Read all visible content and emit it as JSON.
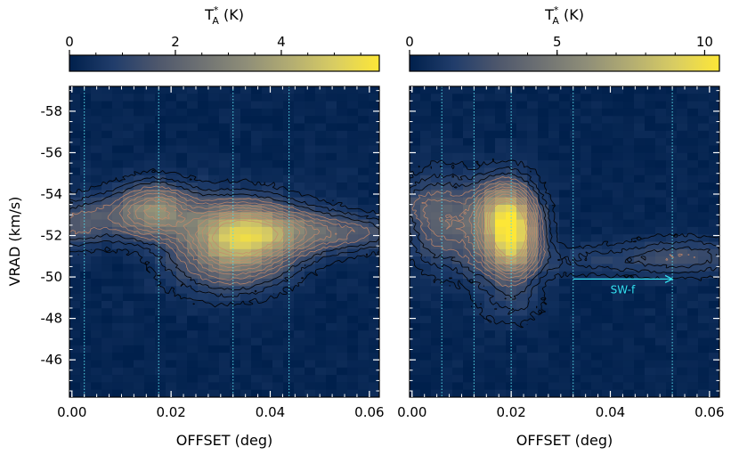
{
  "chart_data": [
    {
      "type": "heatmap",
      "panel": "left",
      "colorbar": {
        "label_main": "T",
        "label_sup": "*",
        "label_sub": "A",
        "label_unit": " (K)",
        "ticks": [
          0,
          2,
          4
        ],
        "range": [
          0,
          5.85
        ]
      },
      "xlabel": "OFFSET (deg)",
      "ylabel": "VRAD (km/s)",
      "xlim": [
        -0.0005,
        0.062
      ],
      "ylim": [
        -44.2,
        -59.2
      ],
      "xticks": [
        "0.00",
        "0.02",
        "0.04",
        "0.06"
      ],
      "yticks": [
        "-58",
        "-56",
        "-54",
        "-52",
        "-50",
        "-48",
        "-46"
      ],
      "vlines": [
        0.0025,
        0.0175,
        0.0325,
        0.0438
      ],
      "blobs": [
        {
          "x": 0.0335,
          "v": -51.9,
          "sx": 0.008,
          "sv": 1.2,
          "amp": 4.4
        },
        {
          "x": 0.017,
          "v": -53.3,
          "sx": 0.005,
          "sv": 0.9,
          "amp": 2.3
        },
        {
          "x": 0.045,
          "v": -52.2,
          "sx": 0.01,
          "sv": 0.75,
          "amp": 1.6
        },
        {
          "x": 0.008,
          "v": -52.9,
          "sx": 0.009,
          "sv": 0.85,
          "amp": 1.3
        },
        {
          "x": 0.058,
          "v": -52.1,
          "sx": 0.007,
          "sv": 0.55,
          "amp": 0.9
        },
        {
          "x": 0.0,
          "v": -52.3,
          "sx": 0.004,
          "sv": 0.7,
          "amp": 0.8
        },
        {
          "x": 0.03,
          "v": -50.0,
          "sx": 0.008,
          "sv": 0.9,
          "amp": 0.7
        }
      ],
      "contour_levels": [
        0.35,
        0.7,
        1.05,
        1.4,
        1.75,
        2.1,
        2.45,
        2.8,
        3.15,
        3.5,
        3.85,
        4.2
      ]
    },
    {
      "type": "heatmap",
      "panel": "right",
      "colorbar": {
        "label_main": "T",
        "label_sup": "*",
        "label_sub": "A",
        "label_unit": " (K)",
        "ticks": [
          0,
          5,
          10
        ],
        "range": [
          0,
          10.5
        ]
      },
      "xlabel": "OFFSET (deg)",
      "ylabel": "",
      "xlim": [
        -0.0005,
        0.062
      ],
      "ylim": [
        -44.2,
        -59.2
      ],
      "xticks": [
        "0.00",
        "0.02",
        "0.04",
        "0.06"
      ],
      "yticks": [],
      "vlines": [
        0.006,
        0.0125,
        0.02,
        0.0325,
        0.0525
      ],
      "blobs": [
        {
          "x": 0.02,
          "v": -52.1,
          "sx": 0.0038,
          "sv": 1.4,
          "amp": 10.0
        },
        {
          "x": 0.0165,
          "v": -53.3,
          "sx": 0.004,
          "sv": 1.0,
          "amp": 3.0
        },
        {
          "x": 0.006,
          "v": -52.7,
          "sx": 0.0045,
          "sv": 1.5,
          "amp": 3.4
        },
        {
          "x": 0.0125,
          "v": -51.3,
          "sx": 0.0025,
          "sv": 1.2,
          "amp": 1.2
        },
        {
          "x": 0.038,
          "v": -50.8,
          "sx": 0.012,
          "sv": 0.55,
          "amp": 1.3
        },
        {
          "x": 0.056,
          "v": -51.0,
          "sx": 0.008,
          "sv": 0.65,
          "amp": 1.9
        },
        {
          "x": 0.0,
          "v": -53.6,
          "sx": 0.003,
          "sv": 0.6,
          "amp": 1.1
        },
        {
          "x": 0.02,
          "v": -48.6,
          "sx": 0.005,
          "sv": 0.8,
          "amp": 1.0
        }
      ],
      "contour_levels": [
        0.6,
        1.2,
        1.8,
        2.4,
        3.0,
        3.6,
        4.2,
        4.8,
        5.4,
        6.0,
        6.6,
        7.2,
        7.8
      ],
      "annotation": {
        "text": "SW-f",
        "x_start": 0.0325,
        "x_end": 0.0525,
        "v": -49.9,
        "color": "#33e0f0"
      }
    }
  ],
  "colormap": [
    "#00204c",
    "#213d6b",
    "#4e576c",
    "#6f7273",
    "#8f8e78",
    "#b3ad72",
    "#d9cd62",
    "#fde737"
  ],
  "contour_dark": "#000000",
  "contour_light": "#c98a6a",
  "vline_color": "#55d8e8"
}
